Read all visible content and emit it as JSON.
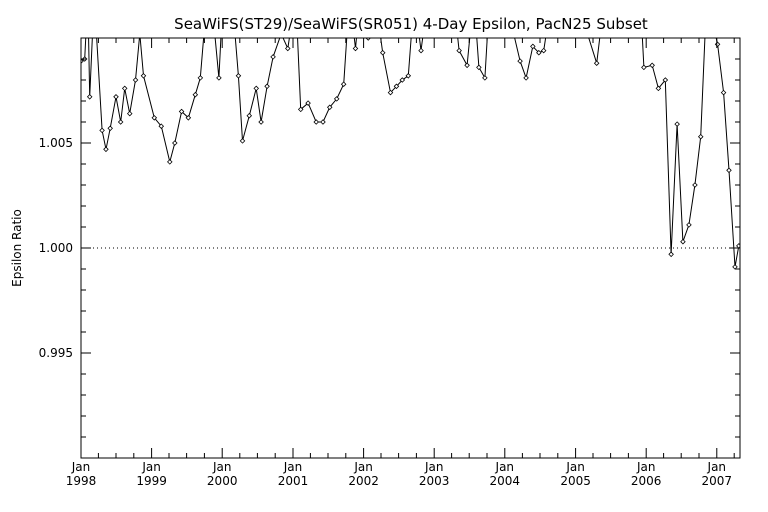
{
  "chart_data": {
    "type": "line",
    "title": "SeaWiFS(ST29)/SeaWiFS(SR051) 4-Day Epsilon, PacN25 Subset",
    "xlabel": "",
    "ylabel": "Epsilon Ratio",
    "xlim": [
      "1998-01-01",
      "2007-05-01"
    ],
    "ylim": [
      0.99,
      1.01
    ],
    "yticks": [
      "0.995",
      "1.000",
      "1.005"
    ],
    "xticks": [
      {
        "month": "Jan",
        "year": "1998",
        "date": "1998-01-01"
      },
      {
        "month": "Jan",
        "year": "1999",
        "date": "1999-01-01"
      },
      {
        "month": "Jan",
        "year": "2000",
        "date": "2000-01-01"
      },
      {
        "month": "Jan",
        "year": "2001",
        "date": "2001-01-01"
      },
      {
        "month": "Jan",
        "year": "2002",
        "date": "2002-01-01"
      },
      {
        "month": "Jan",
        "year": "2003",
        "date": "2003-01-01"
      },
      {
        "month": "Jan",
        "year": "2004",
        "date": "2004-01-01"
      },
      {
        "month": "Jan",
        "year": "2005",
        "date": "2005-01-01"
      },
      {
        "month": "Jan",
        "year": "2006",
        "date": "2006-01-01"
      },
      {
        "month": "Jan",
        "year": "2007",
        "date": "2007-01-01"
      }
    ],
    "reference_line": {
      "y": 1.0,
      "style": "dotted"
    },
    "grid": false,
    "marker": "diamond",
    "series": [
      {
        "points": [
          [
            "1998-01-01",
            1.0089
          ],
          [
            "1998-01-20",
            1.009
          ],
          [
            "1998-02-05",
            1.012
          ],
          [
            "1998-02-15",
            1.0072
          ],
          [
            "1998-03-10",
            1.012
          ],
          [
            "1998-04-20",
            1.0056
          ],
          [
            "1998-05-10",
            1.0047
          ],
          [
            "1998-06-01",
            1.0057
          ],
          [
            "1998-07-01",
            1.0072
          ],
          [
            "1998-07-25",
            1.006
          ],
          [
            "1998-08-15",
            1.0076
          ],
          [
            "1998-09-10",
            1.0064
          ],
          [
            "1998-10-10",
            1.008
          ],
          [
            "1998-11-01",
            1.0102
          ],
          [
            "1998-11-20",
            1.0082
          ],
          [
            "1999-01-15",
            1.0062
          ],
          [
            "1999-02-20",
            1.0058
          ],
          [
            "1999-04-05",
            1.0041
          ],
          [
            "1999-05-01",
            1.005
          ],
          [
            "1999-06-05",
            1.0065
          ],
          [
            "1999-07-10",
            1.0062
          ],
          [
            "1999-08-15",
            1.0073
          ],
          [
            "1999-09-10",
            1.0081
          ],
          [
            "1999-10-15",
            1.012
          ],
          [
            "1999-11-05",
            1.012
          ],
          [
            "1999-12-15",
            1.0081
          ],
          [
            "2000-01-05",
            1.012
          ],
          [
            "2000-02-20",
            1.012
          ],
          [
            "2000-03-25",
            1.0082
          ],
          [
            "2000-04-15",
            1.0051
          ],
          [
            "2000-05-20",
            1.0063
          ],
          [
            "2000-06-25",
            1.0076
          ],
          [
            "2000-07-20",
            1.006
          ],
          [
            "2000-08-20",
            1.0077
          ],
          [
            "2000-09-20",
            1.0091
          ],
          [
            "2000-11-01",
            1.0102
          ],
          [
            "2000-12-05",
            1.0095
          ],
          [
            "2001-01-15",
            1.012
          ],
          [
            "2001-02-10",
            1.0066
          ],
          [
            "2001-03-20",
            1.0069
          ],
          [
            "2001-05-01",
            1.006
          ],
          [
            "2001-06-05",
            1.006
          ],
          [
            "2001-07-10",
            1.0067
          ],
          [
            "2001-08-15",
            1.0071
          ],
          [
            "2001-09-20",
            1.0078
          ],
          [
            "2001-10-20",
            1.012
          ],
          [
            "2001-11-20",
            1.0095
          ],
          [
            "2001-12-15",
            1.012
          ],
          [
            "2002-01-25",
            1.01
          ],
          [
            "2002-03-01",
            1.012
          ],
          [
            "2002-04-10",
            1.0093
          ],
          [
            "2002-05-20",
            1.0074
          ],
          [
            "2002-06-20",
            1.0077
          ],
          [
            "2002-07-20",
            1.008
          ],
          [
            "2002-08-20",
            1.0082
          ],
          [
            "2002-09-20",
            1.012
          ],
          [
            "2002-10-25",
            1.0094
          ],
          [
            "2002-12-01",
            1.012
          ],
          [
            "2003-02-01",
            1.012
          ],
          [
            "2003-04-10",
            1.012
          ],
          [
            "2003-05-10",
            1.0094
          ],
          [
            "2003-06-20",
            1.0087
          ],
          [
            "2003-07-25",
            1.012
          ],
          [
            "2003-08-20",
            1.0086
          ],
          [
            "2003-09-20",
            1.0081
          ],
          [
            "2003-10-15",
            1.012
          ],
          [
            "2004-01-01",
            1.012
          ],
          [
            "2004-03-20",
            1.0089
          ],
          [
            "2004-04-20",
            1.0081
          ],
          [
            "2004-05-25",
            1.0096
          ],
          [
            "2004-06-25",
            1.0093
          ],
          [
            "2004-07-20",
            1.0094
          ],
          [
            "2004-09-01",
            1.012
          ],
          [
            "2005-01-01",
            1.012
          ],
          [
            "2005-04-20",
            1.0088
          ],
          [
            "2005-06-01",
            1.012
          ],
          [
            "2005-12-01",
            1.012
          ],
          [
            "2005-12-20",
            1.0086
          ],
          [
            "2006-02-01",
            1.0087
          ],
          [
            "2006-03-05",
            1.0076
          ],
          [
            "2006-04-10",
            1.008
          ],
          [
            "2006-05-10",
            0.9997
          ],
          [
            "2006-06-10",
            1.0059
          ],
          [
            "2006-07-10",
            1.0003
          ],
          [
            "2006-08-10",
            1.0011
          ],
          [
            "2006-09-10",
            1.003
          ],
          [
            "2006-10-10",
            1.0053
          ],
          [
            "2006-11-10",
            1.012
          ],
          [
            "2007-01-05",
            1.0097
          ],
          [
            "2007-02-05",
            1.0074
          ],
          [
            "2007-03-05",
            1.0037
          ],
          [
            "2007-04-05",
            0.9991
          ],
          [
            "2007-04-25",
            1.0001
          ]
        ]
      }
    ]
  }
}
